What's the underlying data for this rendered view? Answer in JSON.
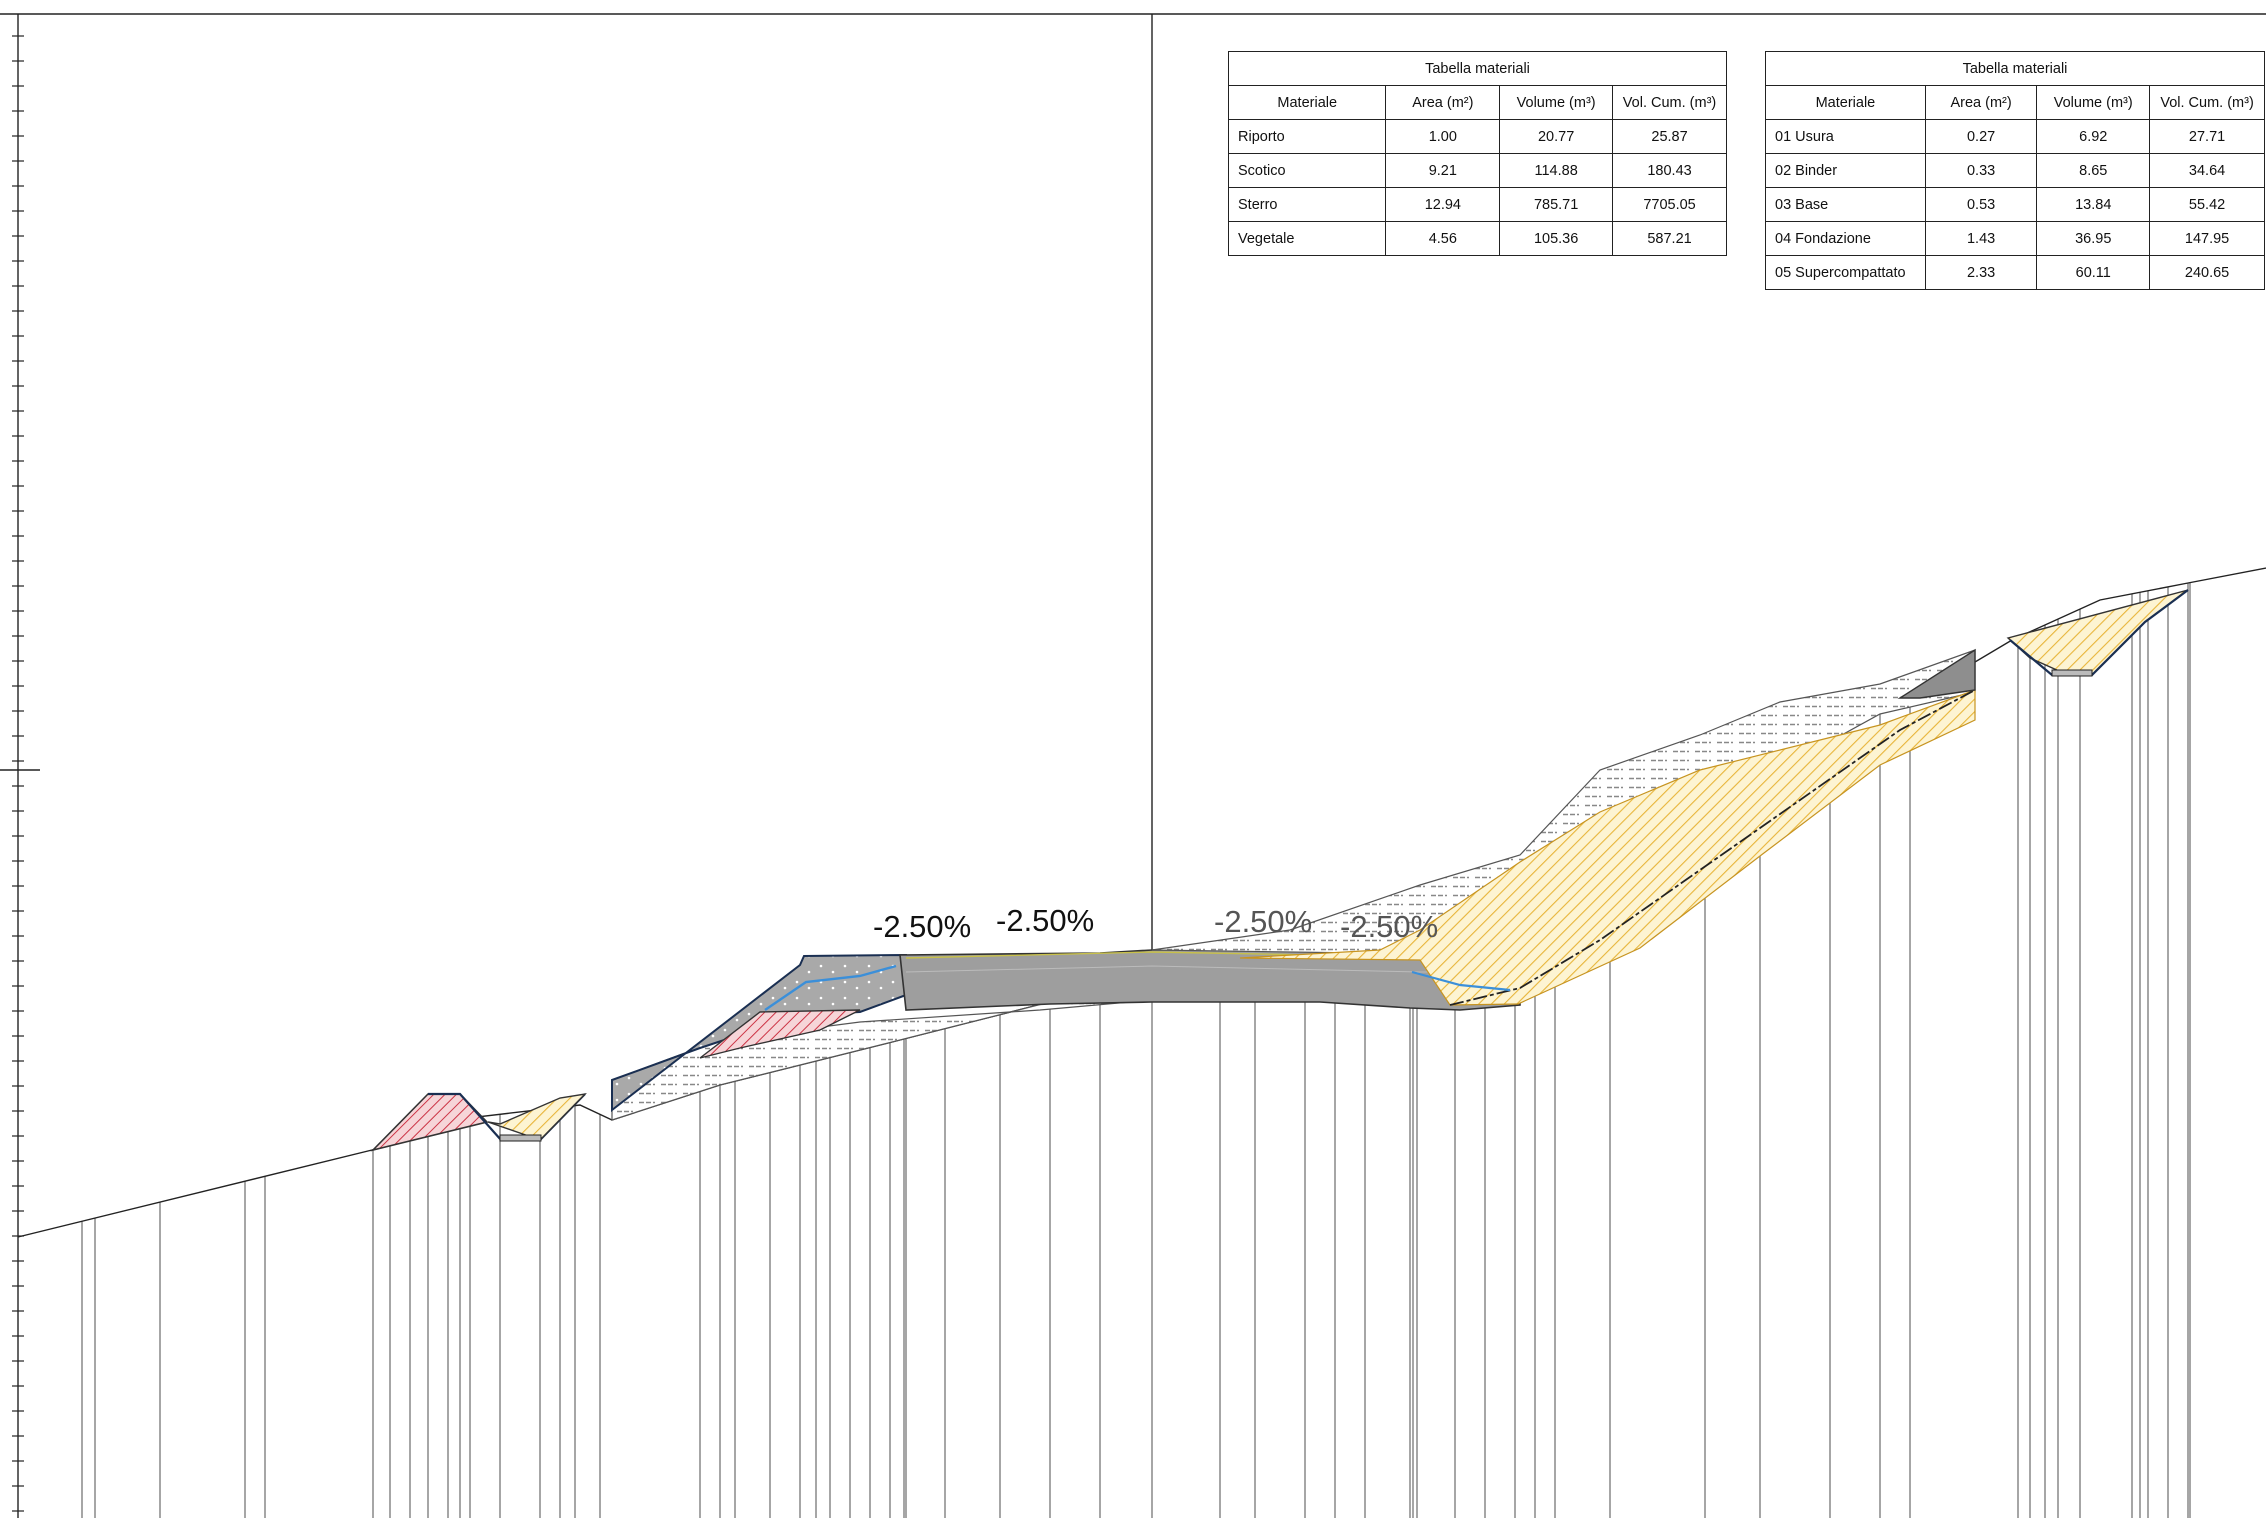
{
  "slope_labels": [
    "-2.50%",
    "-2.50%",
    "-2.50%",
    "-2.50%"
  ],
  "tables": [
    {
      "title": "Tabella materiali",
      "headers": [
        "Materiale",
        "Area (m²)",
        "Volume (m³)",
        "Vol. Cum. (m³)"
      ],
      "rows": [
        [
          "Riporto",
          "1.00",
          "20.77",
          "25.87"
        ],
        [
          "Scotico",
          "9.21",
          "114.88",
          "180.43"
        ],
        [
          "Sterro",
          "12.94",
          "785.71",
          "7705.05"
        ],
        [
          "Vegetale",
          "4.56",
          "105.36",
          "587.21"
        ]
      ]
    },
    {
      "title": "Tabella materiali",
      "headers": [
        "Materiale",
        "Area (m²)",
        "Volume (m³)",
        "Vol. Cum. (m³)"
      ],
      "rows": [
        [
          "01 Usura",
          "0.27",
          "6.92",
          "27.71"
        ],
        [
          "02 Binder",
          "0.33",
          "8.65",
          "34.64"
        ],
        [
          "03 Base",
          "0.53",
          "13.84",
          "55.42"
        ],
        [
          "04 Fondazione",
          "1.43",
          "36.95",
          "147.95"
        ],
        [
          "05 Supercompattato",
          "2.33",
          "60.11",
          "240.65"
        ]
      ]
    }
  ],
  "colors": {
    "sterro_hatch": "#f0c64a",
    "riporto_hatch": "#d23b4a",
    "pavement": "#9a9a9a",
    "layer_line": "#3b8fd9",
    "scotico_hatch": "#777777"
  }
}
